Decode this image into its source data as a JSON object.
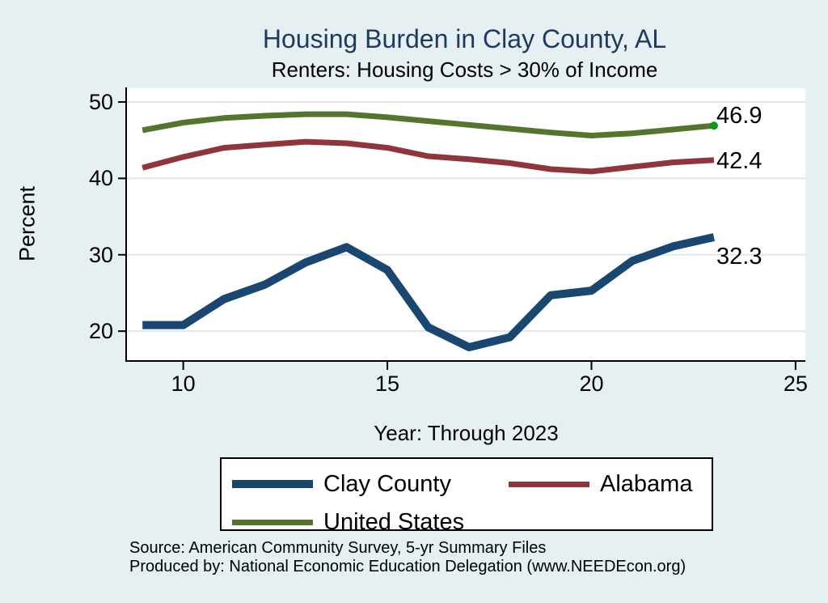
{
  "title": "Housing Burden in Clay County, AL",
  "subtitle": "Renters: Housing Costs > 30% of Income",
  "y_axis_label": "Percent",
  "x_axis_label": "Year: Through 2023",
  "source_line1": "Source: American Community Survey, 5-yr Summary Files",
  "source_line2": "Produced by: National Economic Education Delegation (www.NEEDEcon.org)",
  "colors": {
    "background": "#e6eff2",
    "plot_background": "#ffffff",
    "gridline": "#dbe8ec",
    "axis": "#000000",
    "title_text": "#1e3a5f",
    "clay_county": "#1a476f",
    "alabama": "#90353b",
    "united_states": "#55752f",
    "end_marker": "#0f9618"
  },
  "chart_data": {
    "type": "line",
    "title": "Housing Burden in Clay County, AL",
    "subtitle": "Renters: Housing Costs > 30% of Income",
    "xlabel": "Year: Through 2023",
    "ylabel": "Percent",
    "x": [
      9,
      10,
      11,
      12,
      13,
      14,
      15,
      16,
      17,
      18,
      19,
      20,
      21,
      22,
      23
    ],
    "x_tick_values": [
      10,
      15,
      20,
      25
    ],
    "x_tick_labels": [
      "10",
      "15",
      "20",
      "25"
    ],
    "y_tick_values": [
      20,
      30,
      40,
      50
    ],
    "y_tick_labels": [
      "20",
      "30",
      "40",
      "50"
    ],
    "xlim": [
      8.62,
      25.24
    ],
    "ylim": [
      16.2,
      51.8
    ],
    "grid": true,
    "legend_position": "bottom",
    "series": [
      {
        "name": "Clay County",
        "key": "clay_county",
        "color": "#1a476f",
        "line_width": 10,
        "values": [
          20.8,
          20.8,
          24.2,
          26.1,
          29.0,
          31.0,
          28.0,
          20.5,
          17.9,
          19.2,
          24.7,
          25.3,
          29.2,
          31.1,
          32.3
        ],
        "end_label": "32.3",
        "end_marker": false
      },
      {
        "name": "Alabama",
        "key": "alabama",
        "color": "#90353b",
        "line_width": 7,
        "values": [
          41.4,
          42.8,
          44.0,
          44.4,
          44.8,
          44.6,
          44.0,
          42.9,
          42.5,
          42.0,
          41.2,
          40.9,
          41.5,
          42.1,
          42.4
        ],
        "end_label": "42.4",
        "end_marker": false
      },
      {
        "name": "United States",
        "key": "united_states",
        "color": "#55752f",
        "line_width": 7,
        "values": [
          46.3,
          47.3,
          47.9,
          48.2,
          48.4,
          48.4,
          48.0,
          47.5,
          47.0,
          46.5,
          46.0,
          45.6,
          45.9,
          46.4,
          46.9
        ],
        "end_label": "46.9",
        "end_marker": true
      }
    ]
  }
}
